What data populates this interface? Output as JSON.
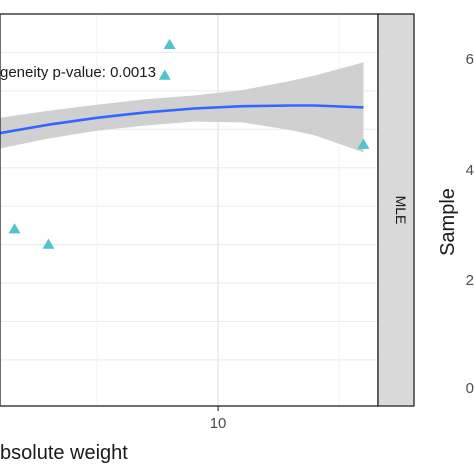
{
  "chart_data": {
    "type": "scatter",
    "title": "",
    "xlabel": "bsolute weight",
    "ylabel": "Sample",
    "xlim": [
      5.5,
      13.3
    ],
    "ylim": [
      -3.2,
      7.0
    ],
    "x_ticks": [
      10
    ],
    "x_minor_ticks": [
      7.5,
      12.5
    ],
    "y_gridlines": [
      -2,
      -1,
      0,
      1,
      2,
      3,
      4,
      5,
      6
    ],
    "annotation": "geneity p-value: 0.0013",
    "facet_label": "MLE",
    "grid": true,
    "smooth_color": "#3366ff",
    "ribbon_color": "#c8c8c8",
    "point_color": "#4fc4cc",
    "series": [
      {
        "points": [
          {
            "x": 5.8,
            "y": 1.4
          },
          {
            "x": 6.5,
            "y": 1.0
          },
          {
            "x": 9.0,
            "y": 6.2
          },
          {
            "x": 8.9,
            "y": 5.4
          },
          {
            "x": 13.0,
            "y": 3.6
          }
        ]
      }
    ],
    "smooth": {
      "x": [
        5.5,
        6.5,
        7.5,
        8.5,
        9.5,
        10.5,
        11.5,
        12.0,
        13.0
      ],
      "y": [
        3.9,
        4.12,
        4.3,
        4.44,
        4.54,
        4.6,
        4.62,
        4.62,
        4.57
      ],
      "lower": [
        3.5,
        3.76,
        3.96,
        4.1,
        4.2,
        4.18,
        3.98,
        3.84,
        3.4
      ],
      "upper": [
        4.3,
        4.48,
        4.64,
        4.78,
        4.88,
        5.02,
        5.26,
        5.4,
        5.74
      ]
    },
    "right_panel": {
      "ylabel": "Sample",
      "tick_labels": [
        "6",
        "4",
        "2",
        "0"
      ]
    }
  }
}
